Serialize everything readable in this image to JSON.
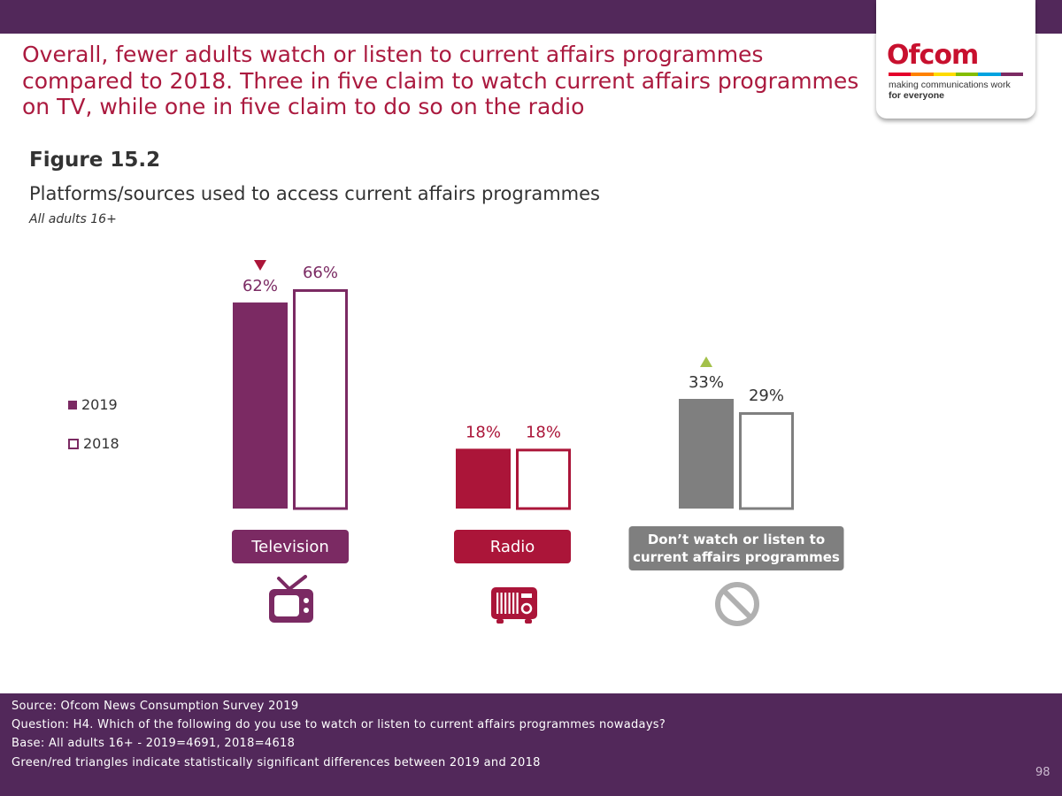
{
  "header": {
    "headline": "Overall, fewer adults watch or listen to current affairs programmes compared to 2018. Three in five claim to watch current affairs programmes on TV, while one in five claim to do so on the radio"
  },
  "logo": {
    "wordmark": "Ofcom",
    "tagline_1": "making communications work",
    "tagline_2": "for everyone",
    "stripe_colors": [
      "#e4002b",
      "#ff8200",
      "#fedb00",
      "#84bd00",
      "#00a3e0",
      "#7b2a63"
    ]
  },
  "figure": {
    "title": "Figure 15.2",
    "subtitle": "Platforms/sources used to access current affairs programmes",
    "base_note": "All adults 16+"
  },
  "legend": {
    "items": [
      {
        "label": "2019",
        "style": "filled"
      },
      {
        "label": "2018",
        "style": "outline"
      }
    ]
  },
  "chart_data": {
    "type": "bar",
    "categories": [
      "Television",
      "Radio",
      "Don’t watch or listen to current affairs programmes"
    ],
    "category_colors": [
      "#7b2a63",
      "#ab1539",
      "#7f7f7f"
    ],
    "category_icons": [
      "tv-icon",
      "radio-icon",
      "prohibited-icon"
    ],
    "series": [
      {
        "name": "2019",
        "values": [
          62,
          18,
          33
        ],
        "labels": [
          "62%",
          "18%",
          "33%"
        ]
      },
      {
        "name": "2018",
        "values": [
          66,
          18,
          29
        ],
        "labels": [
          "66%",
          "18%",
          "29%"
        ]
      }
    ],
    "significance_markers": [
      {
        "category": "Television",
        "series": "2019",
        "direction": "down",
        "color": "#ab1539"
      },
      {
        "category": "Don’t watch or listen to current affairs programmes",
        "series": "2019",
        "direction": "up",
        "color": "#a3c14a"
      }
    ],
    "ylim": [
      0,
      66
    ],
    "grid": false,
    "legend_position": "left"
  },
  "footer": {
    "source": "Source: Ofcom News Consumption Survey 2019",
    "question": "Question: H4. Which of the following do you use to watch or listen to current affairs programmes nowadays?",
    "base": "Base: All adults 16+ - 2019=4691, 2018=4618",
    "note": "Green/red triangles indicate statistically significant differences between 2019 and 2018",
    "page_number": "98"
  }
}
